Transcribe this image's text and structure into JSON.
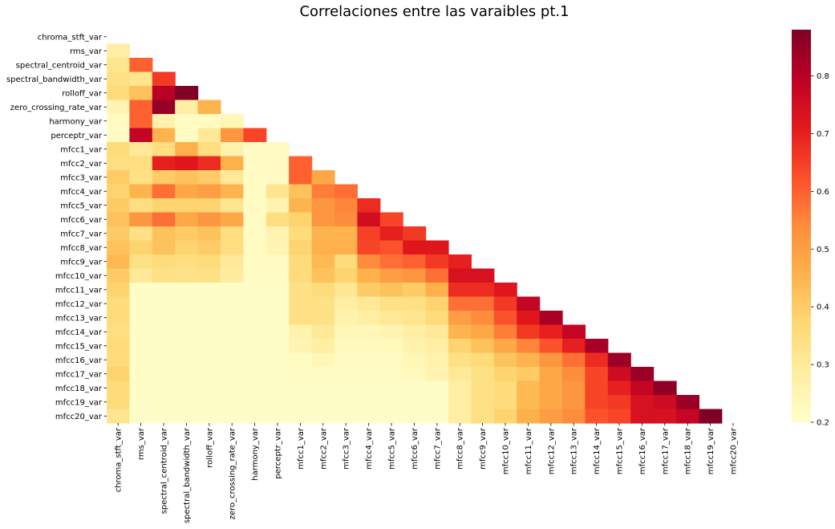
{
  "chart_data": {
    "type": "heatmap",
    "title": "Correlaciones entre las varaibles pt.1",
    "xlabel": "",
    "ylabel": "",
    "mask": "upper-triangle-including-diagonal",
    "colormap": "YlOrRd",
    "color_range": [
      0.2,
      0.88
    ],
    "colorbar_ticks": [
      "0.2",
      "0.3",
      "0.4",
      "0.5",
      "0.6",
      "0.7",
      "0.8"
    ],
    "variables": [
      "chroma_stft_var",
      "rms_var",
      "spectral_centroid_var",
      "spectral_bandwidth_var",
      "rolloff_var",
      "zero_crossing_rate_var",
      "harmony_var",
      "perceptr_var",
      "mfcc1_var",
      "mfcc2_var",
      "mfcc3_var",
      "mfcc4_var",
      "mfcc5_var",
      "mfcc6_var",
      "mfcc7_var",
      "mfcc8_var",
      "mfcc9_var",
      "mfcc10_var",
      "mfcc11_var",
      "mfcc12_var",
      "mfcc13_var",
      "mfcc14_var",
      "mfcc15_var",
      "mfcc16_var",
      "mfcc17_var",
      "mfcc18_var",
      "mfcc19_var",
      "mfcc20_var"
    ],
    "values": [
      [],
      [
        0.28
      ],
      [
        0.32,
        0.6
      ],
      [
        0.34,
        0.32,
        0.66
      ],
      [
        0.36,
        0.42,
        0.8,
        0.88
      ],
      [
        0.25,
        0.6,
        0.85,
        0.28,
        0.45
      ],
      [
        0.22,
        0.6,
        0.26,
        0.22,
        0.22,
        0.24
      ],
      [
        0.22,
        0.78,
        0.45,
        0.22,
        0.3,
        0.52,
        0.64
      ],
      [
        0.36,
        0.3,
        0.35,
        0.46,
        0.35,
        0.26,
        0.22,
        0.22
      ],
      [
        0.35,
        0.35,
        0.7,
        0.72,
        0.68,
        0.46,
        0.22,
        0.22,
        0.6
      ],
      [
        0.4,
        0.34,
        0.4,
        0.42,
        0.4,
        0.3,
        0.22,
        0.22,
        0.6,
        0.48
      ],
      [
        0.38,
        0.45,
        0.58,
        0.48,
        0.5,
        0.45,
        0.22,
        0.32,
        0.42,
        0.56,
        0.58
      ],
      [
        0.4,
        0.35,
        0.38,
        0.38,
        0.38,
        0.32,
        0.22,
        0.25,
        0.45,
        0.52,
        0.55,
        0.68
      ],
      [
        0.42,
        0.52,
        0.58,
        0.48,
        0.52,
        0.48,
        0.22,
        0.35,
        0.38,
        0.52,
        0.54,
        0.75,
        0.64
      ],
      [
        0.4,
        0.34,
        0.42,
        0.4,
        0.42,
        0.35,
        0.22,
        0.25,
        0.36,
        0.45,
        0.45,
        0.65,
        0.7,
        0.66
      ],
      [
        0.42,
        0.38,
        0.42,
        0.38,
        0.4,
        0.35,
        0.22,
        0.25,
        0.38,
        0.46,
        0.46,
        0.64,
        0.62,
        0.72,
        0.72
      ],
      [
        0.44,
        0.34,
        0.36,
        0.35,
        0.36,
        0.3,
        0.22,
        0.22,
        0.36,
        0.44,
        0.36,
        0.54,
        0.58,
        0.6,
        0.66,
        0.7
      ],
      [
        0.4,
        0.3,
        0.34,
        0.33,
        0.34,
        0.29,
        0.22,
        0.22,
        0.36,
        0.42,
        0.38,
        0.46,
        0.5,
        0.52,
        0.58,
        0.74,
        0.74
      ],
      [
        0.38,
        0.21,
        0.21,
        0.21,
        0.21,
        0.21,
        0.21,
        0.21,
        0.34,
        0.36,
        0.31,
        0.4,
        0.42,
        0.4,
        0.46,
        0.68,
        0.68,
        0.72
      ],
      [
        0.36,
        0.21,
        0.21,
        0.21,
        0.21,
        0.21,
        0.21,
        0.21,
        0.34,
        0.34,
        0.28,
        0.3,
        0.34,
        0.34,
        0.38,
        0.58,
        0.58,
        0.66,
        0.78
      ],
      [
        0.36,
        0.21,
        0.21,
        0.21,
        0.21,
        0.21,
        0.21,
        0.21,
        0.34,
        0.34,
        0.26,
        0.28,
        0.3,
        0.32,
        0.36,
        0.5,
        0.54,
        0.62,
        0.72,
        0.82
      ],
      [
        0.35,
        0.21,
        0.21,
        0.21,
        0.21,
        0.21,
        0.21,
        0.21,
        0.26,
        0.3,
        0.24,
        0.24,
        0.25,
        0.28,
        0.3,
        0.45,
        0.48,
        0.56,
        0.66,
        0.7,
        0.78
      ],
      [
        0.36,
        0.21,
        0.21,
        0.21,
        0.21,
        0.21,
        0.21,
        0.21,
        0.25,
        0.28,
        0.23,
        0.23,
        0.23,
        0.26,
        0.28,
        0.38,
        0.42,
        0.48,
        0.55,
        0.62,
        0.7,
        0.82
      ],
      [
        0.36,
        0.21,
        0.21,
        0.21,
        0.21,
        0.21,
        0.21,
        0.21,
        0.22,
        0.24,
        0.22,
        0.22,
        0.22,
        0.24,
        0.26,
        0.34,
        0.36,
        0.42,
        0.45,
        0.52,
        0.58,
        0.68,
        0.84
      ],
      [
        0.38,
        0.21,
        0.21,
        0.21,
        0.21,
        0.21,
        0.21,
        0.21,
        0.22,
        0.22,
        0.22,
        0.22,
        0.22,
        0.23,
        0.25,
        0.3,
        0.34,
        0.38,
        0.4,
        0.48,
        0.54,
        0.64,
        0.76,
        0.84
      ],
      [
        0.36,
        0.21,
        0.21,
        0.21,
        0.21,
        0.21,
        0.21,
        0.21,
        0.21,
        0.21,
        0.21,
        0.21,
        0.21,
        0.21,
        0.21,
        0.28,
        0.34,
        0.36,
        0.44,
        0.48,
        0.52,
        0.64,
        0.7,
        0.78,
        0.86
      ],
      [
        0.36,
        0.21,
        0.21,
        0.21,
        0.21,
        0.21,
        0.21,
        0.21,
        0.21,
        0.21,
        0.21,
        0.21,
        0.21,
        0.21,
        0.21,
        0.28,
        0.34,
        0.36,
        0.44,
        0.48,
        0.52,
        0.64,
        0.66,
        0.74,
        0.76,
        0.84
      ],
      [
        0.32,
        0.21,
        0.21,
        0.21,
        0.21,
        0.21,
        0.21,
        0.21,
        0.21,
        0.21,
        0.21,
        0.21,
        0.21,
        0.21,
        0.21,
        0.28,
        0.34,
        0.38,
        0.46,
        0.5,
        0.54,
        0.62,
        0.64,
        0.74,
        0.74,
        0.78,
        0.88
      ]
    ]
  }
}
